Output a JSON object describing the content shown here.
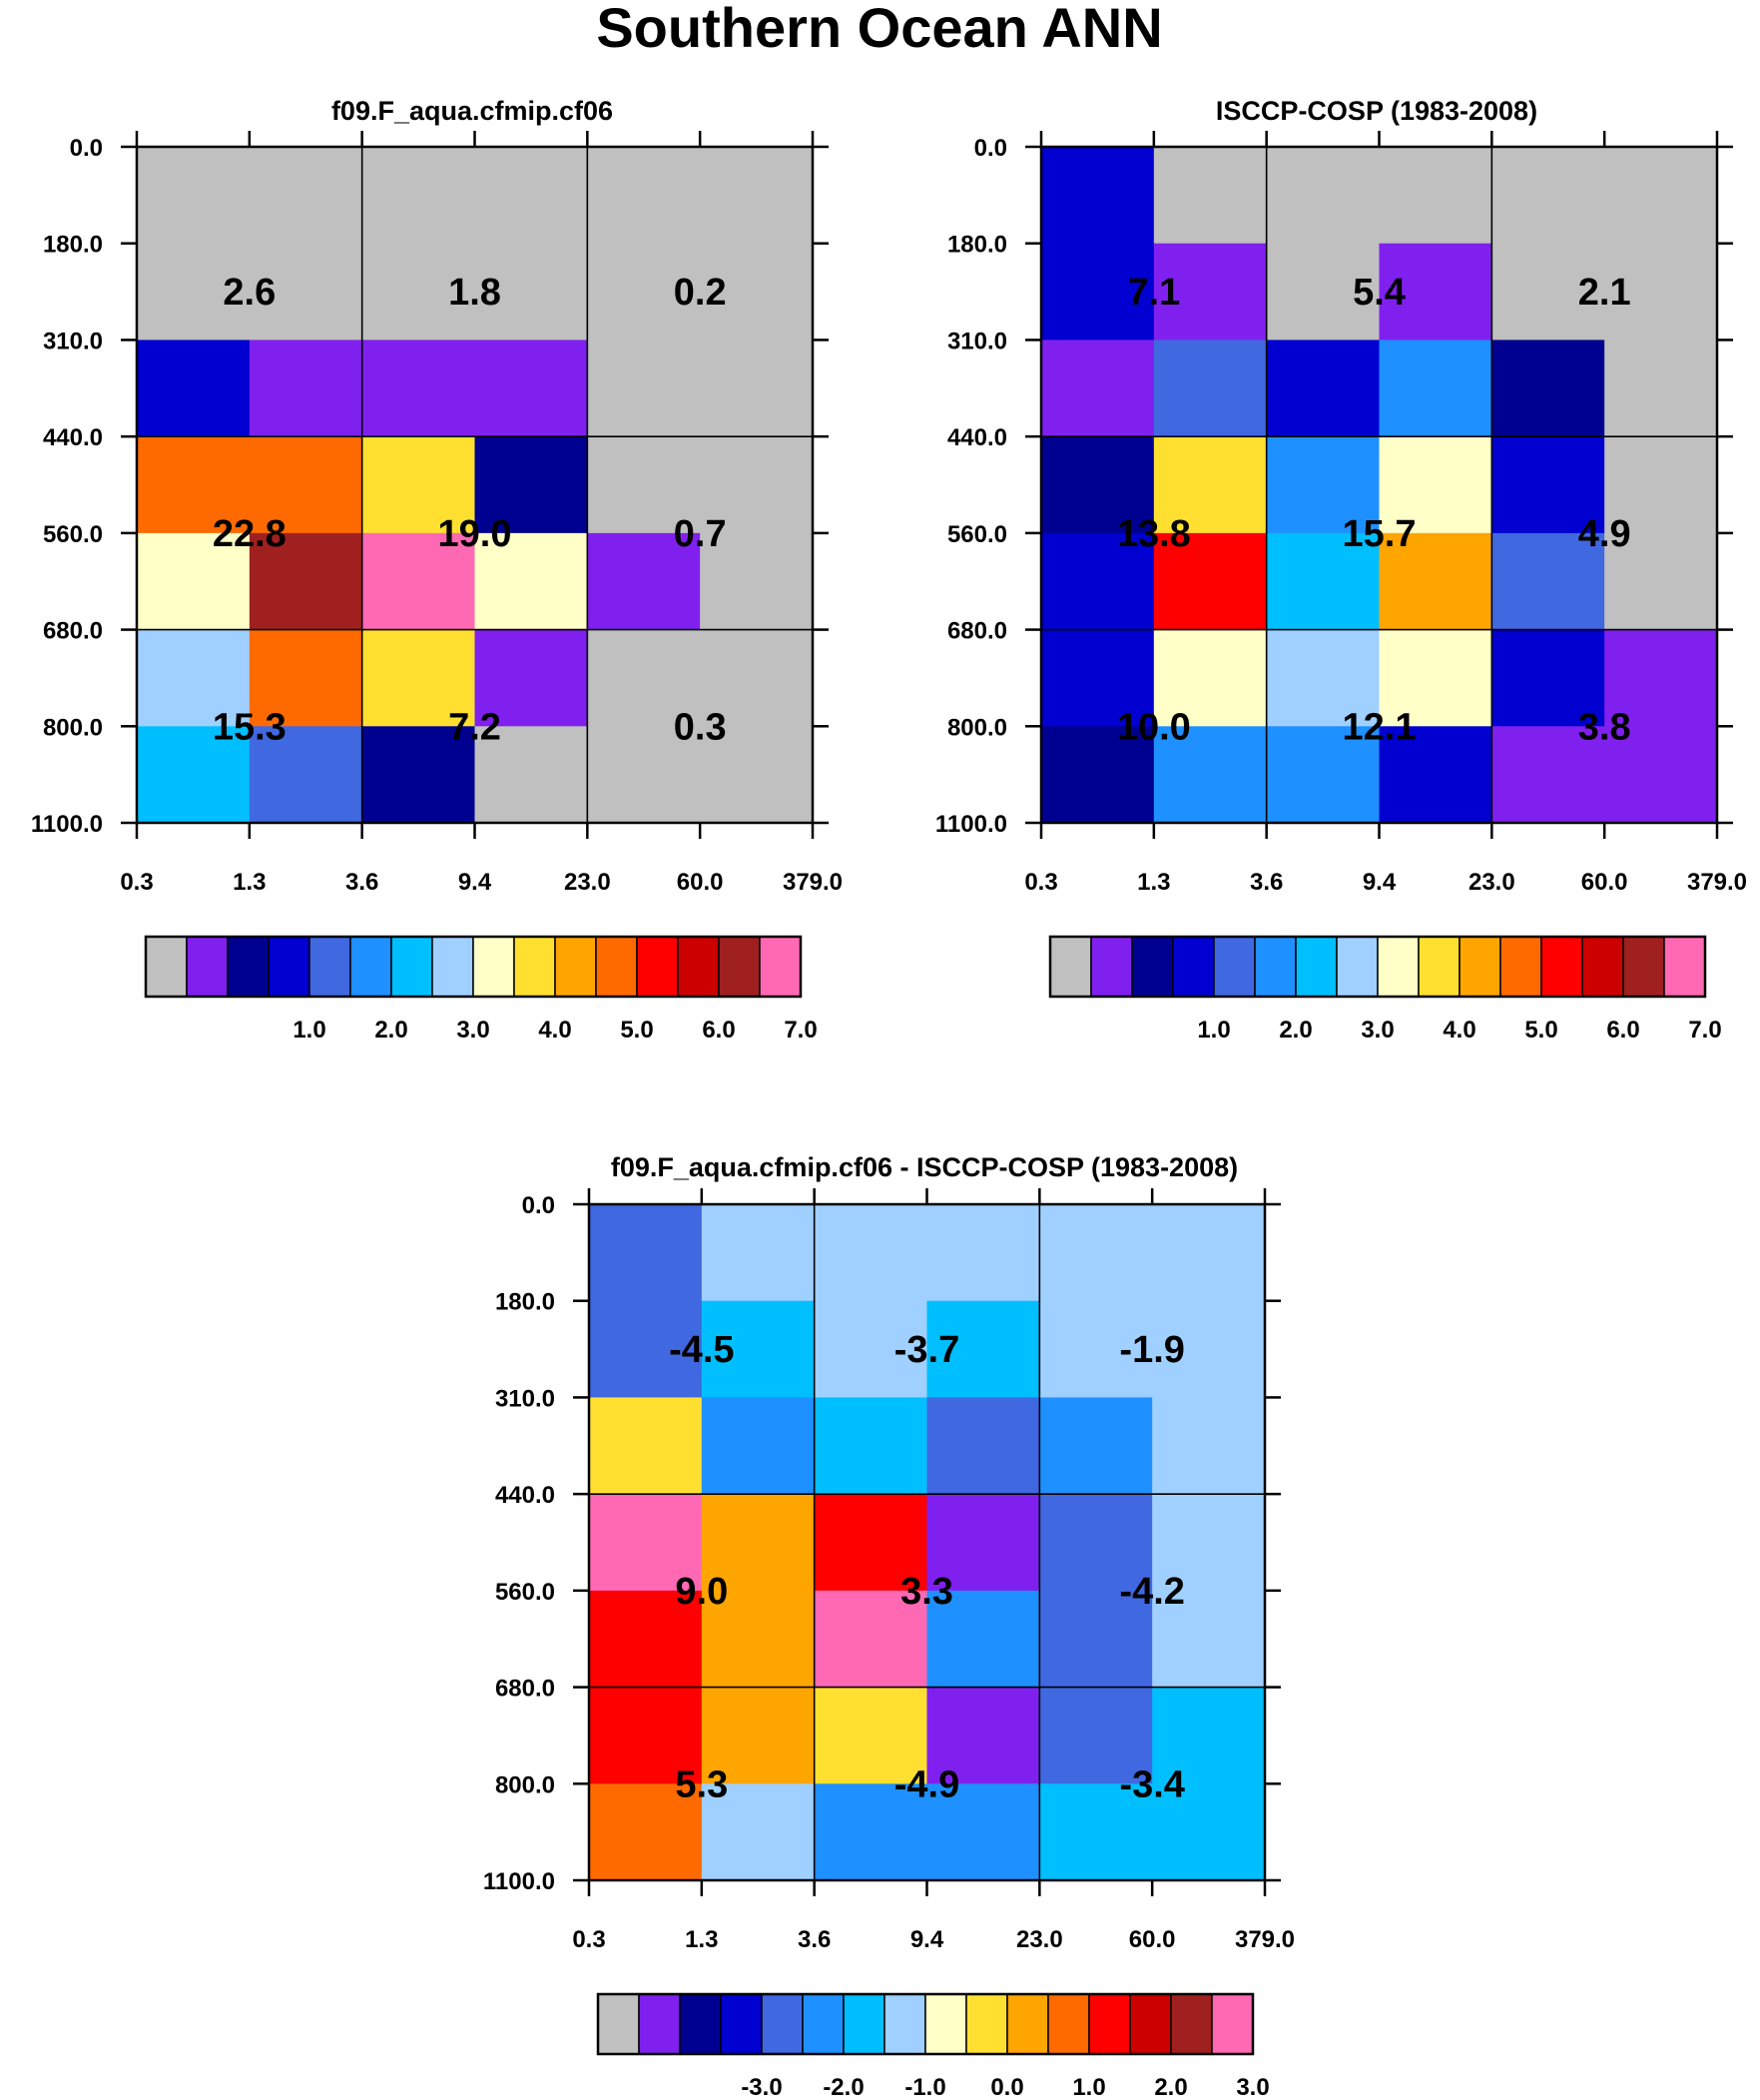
{
  "figure_title": "Southern Ocean ANN",
  "colors": {
    "palette": [
      "#c0c0c0",
      "#8020ee",
      "#000090",
      "#0000d0",
      "#4068e0",
      "#1e90ff",
      "#00bfff",
      "#a0d0ff",
      "#ffffc8",
      "#ffe030",
      "#ffa500",
      "#ff6a00",
      "#ff0000",
      "#cd0000",
      "#a02020",
      "#ff69b4"
    ]
  },
  "chart_data": [
    {
      "type": "heatmap",
      "title": "f09.F_aqua.cfmip.cf06",
      "x_ticks": [
        "0.3",
        "1.3",
        "3.6",
        "9.4",
        "23.0",
        "60.0",
        "379.0"
      ],
      "y_ticks": [
        "0.0",
        "180.0",
        "310.0",
        "440.0",
        "560.0",
        "680.0",
        "800.0",
        "1100.0"
      ],
      "cells": [
        [
          0,
          0,
          0,
          0,
          0,
          0
        ],
        [
          0,
          0,
          0,
          0,
          0,
          0
        ],
        [
          3,
          1,
          1,
          1,
          0,
          0
        ],
        [
          11,
          11,
          9,
          2,
          0,
          0
        ],
        [
          8,
          14,
          15,
          8,
          1,
          0
        ],
        [
          7,
          11,
          9,
          1,
          0,
          0
        ],
        [
          6,
          4,
          2,
          0,
          0,
          0
        ]
      ],
      "box_values": [
        [
          "2.6",
          "1.8",
          "0.2"
        ],
        [
          "22.8",
          "19.0",
          "0.7"
        ],
        [
          "15.3",
          "7.2",
          "0.3"
        ]
      ],
      "colorbar_labels": [
        "1.0",
        "2.0",
        "3.0",
        "4.0",
        "5.0",
        "6.0",
        "7.0"
      ]
    },
    {
      "type": "heatmap",
      "title": "ISCCP-COSP (1983-2008)",
      "x_ticks": [
        "0.3",
        "1.3",
        "3.6",
        "9.4",
        "23.0",
        "60.0",
        "379.0"
      ],
      "y_ticks": [
        "0.0",
        "180.0",
        "310.0",
        "440.0",
        "560.0",
        "680.0",
        "800.0",
        "1100.0"
      ],
      "cells": [
        [
          3,
          0,
          0,
          0,
          0,
          0
        ],
        [
          3,
          1,
          0,
          1,
          0,
          0
        ],
        [
          1,
          4,
          3,
          5,
          2,
          0
        ],
        [
          2,
          9,
          5,
          8,
          3,
          0
        ],
        [
          3,
          12,
          6,
          10,
          4,
          0
        ],
        [
          3,
          8,
          7,
          8,
          3,
          1
        ],
        [
          2,
          5,
          5,
          3,
          1,
          1
        ]
      ],
      "box_values": [
        [
          "7.1",
          "5.4",
          "2.1"
        ],
        [
          "13.8",
          "15.7",
          "4.9"
        ],
        [
          "10.0",
          "12.1",
          "3.8"
        ]
      ],
      "colorbar_labels": [
        "1.0",
        "2.0",
        "3.0",
        "4.0",
        "5.0",
        "6.0",
        "7.0"
      ]
    },
    {
      "type": "heatmap",
      "title": "f09.F_aqua.cfmip.cf06 - ISCCP-COSP (1983-2008)",
      "x_ticks": [
        "0.3",
        "1.3",
        "3.6",
        "9.4",
        "23.0",
        "60.0",
        "379.0"
      ],
      "y_ticks": [
        "0.0",
        "180.0",
        "310.0",
        "440.0",
        "560.0",
        "680.0",
        "800.0",
        "1100.0"
      ],
      "cells": [
        [
          4,
          7,
          7,
          7,
          7,
          7
        ],
        [
          4,
          6,
          7,
          6,
          7,
          7
        ],
        [
          9,
          5,
          6,
          4,
          5,
          7
        ],
        [
          15,
          10,
          12,
          1,
          4,
          7
        ],
        [
          12,
          10,
          15,
          5,
          4,
          7
        ],
        [
          12,
          10,
          9,
          1,
          4,
          6
        ],
        [
          11,
          7,
          5,
          5,
          6,
          6
        ]
      ],
      "box_values": [
        [
          "-4.5",
          "-3.7",
          "-1.9"
        ],
        [
          "9.0",
          "3.3",
          "-4.2"
        ],
        [
          "5.3",
          "-4.9",
          "-3.4"
        ]
      ],
      "colorbar_labels": [
        "-3.0",
        "-2.0",
        "-1.0",
        "0.0",
        "1.0",
        "2.0",
        "3.0"
      ]
    }
  ]
}
